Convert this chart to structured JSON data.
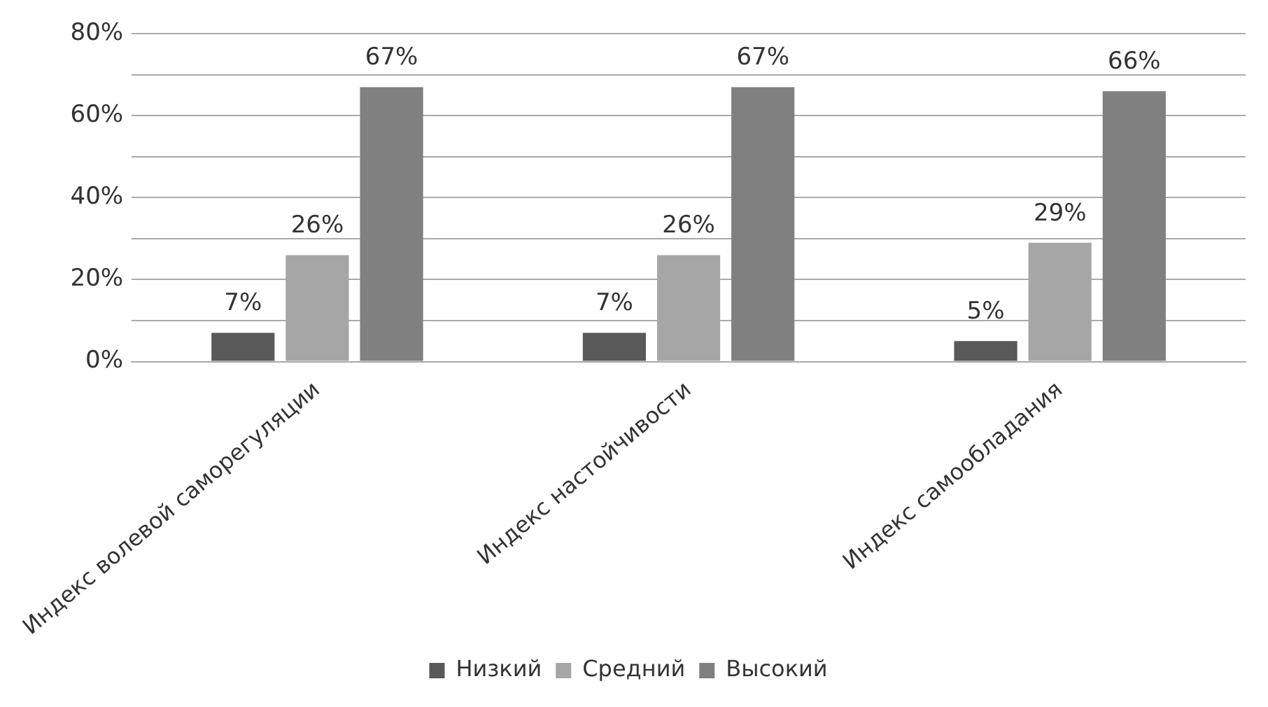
{
  "chart_data": {
    "type": "bar",
    "categories": [
      "Индекс волевой саморегуляции",
      "Индекс настойчивости",
      "Индекс самообладания"
    ],
    "series": [
      {
        "name": "Низкий",
        "color": "#595959",
        "values": [
          7,
          7,
          5
        ],
        "value_labels": [
          "7%",
          "7%",
          "5%"
        ]
      },
      {
        "name": "Средний",
        "color": "#a6a6a6",
        "values": [
          26,
          26,
          29
        ],
        "value_labels": [
          "26%",
          "26%",
          "29%"
        ]
      },
      {
        "name": "Высокий",
        "color": "#808080",
        "values": [
          67,
          67,
          66
        ],
        "value_labels": [
          "67%",
          "67%",
          "66%"
        ]
      }
    ],
    "ylim": [
      0,
      80
    ],
    "yticks": [
      {
        "value": 0,
        "label": "0%"
      },
      {
        "value": 10,
        "label": null
      },
      {
        "value": 20,
        "label": "20%"
      },
      {
        "value": 30,
        "label": null
      },
      {
        "value": 40,
        "label": "40%"
      },
      {
        "value": 50,
        "label": null
      },
      {
        "value": 60,
        "label": "60%"
      },
      {
        "value": 70,
        "label": null
      },
      {
        "value": 80,
        "label": "80%"
      }
    ],
    "grid": "y",
    "legend": "bottom"
  }
}
